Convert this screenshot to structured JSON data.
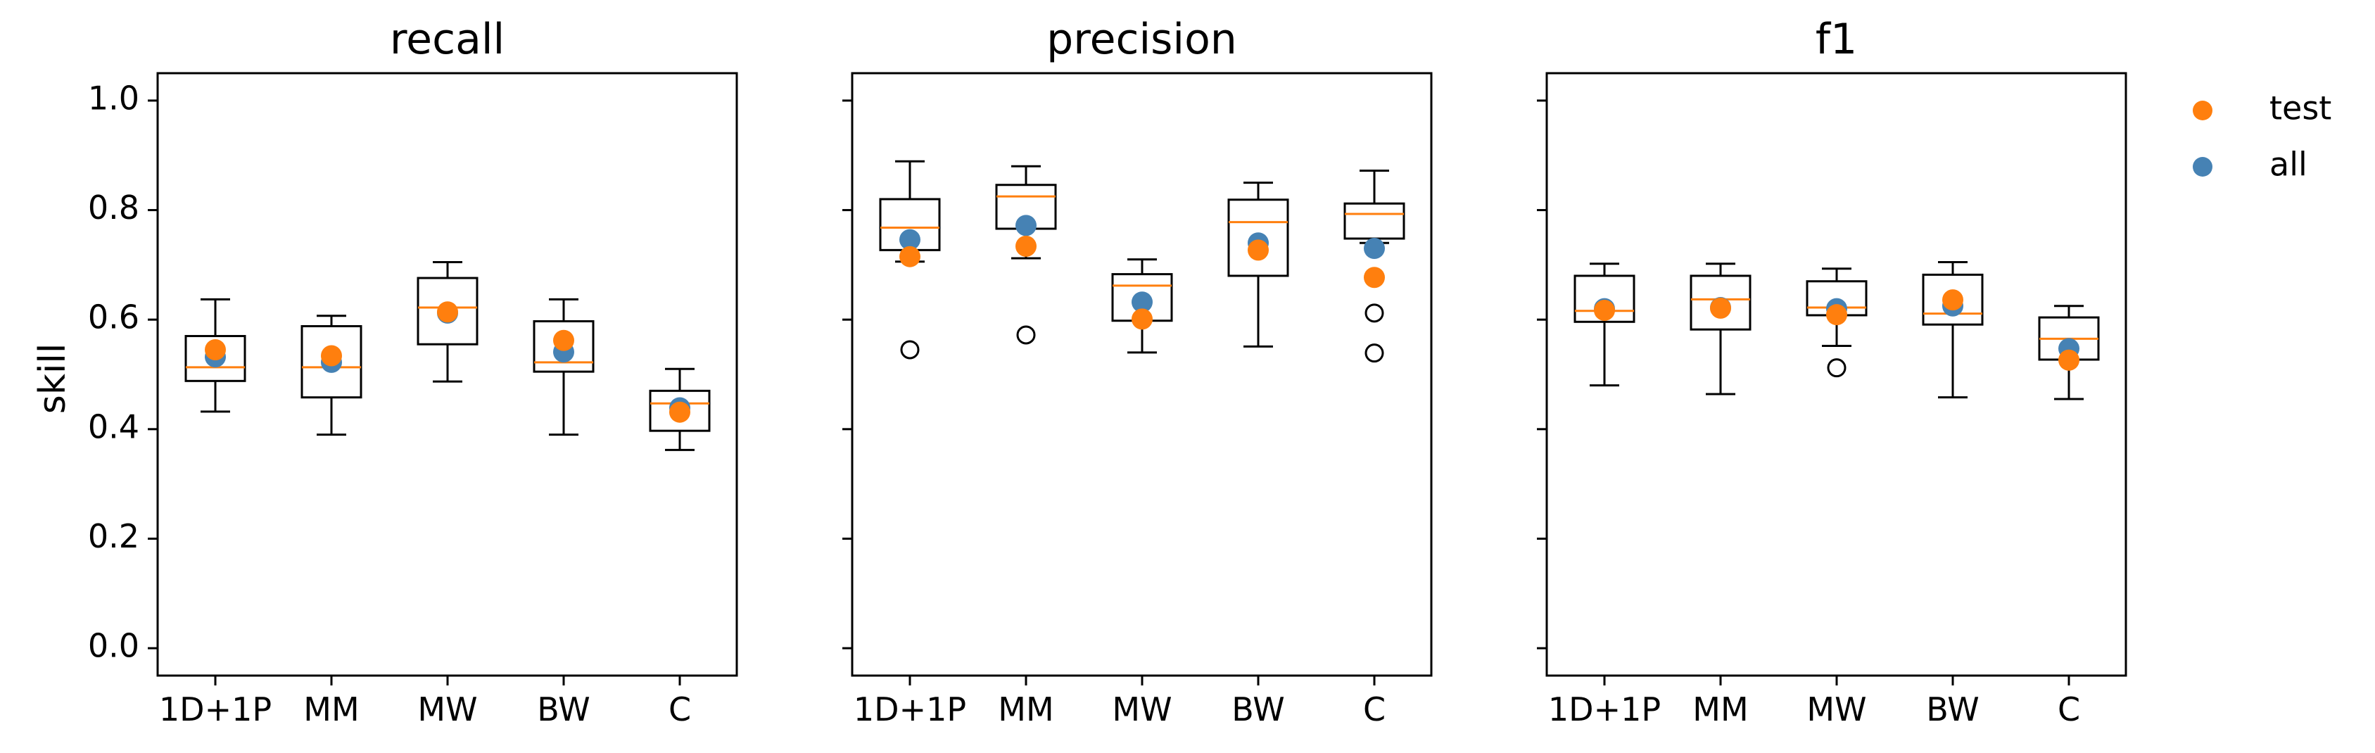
{
  "chart_data": {
    "type": "box",
    "categories": [
      "1D+1P",
      "MM",
      "MW",
      "BW",
      "C"
    ],
    "ylabel": "skill",
    "ylim": [
      -0.05,
      1.05
    ],
    "yticks": [
      "0.0",
      "0.2",
      "0.4",
      "0.6",
      "0.8",
      "1.0"
    ],
    "legend": {
      "position": "top-right-outside",
      "entries": [
        "test",
        "all"
      ]
    },
    "colors": {
      "test": "#ff7f0e",
      "all": "#4682b4",
      "median": "#ff7f0e",
      "box": "#000000"
    },
    "panels": [
      {
        "title": "recall",
        "boxes": [
          {
            "q1": 0.488,
            "median": 0.513,
            "q3": 0.57,
            "whislo": 0.432,
            "whishi": 0.637,
            "fliers": [],
            "test": 0.545,
            "all": 0.532
          },
          {
            "q1": 0.458,
            "median": 0.513,
            "q3": 0.588,
            "whislo": 0.39,
            "whishi": 0.607,
            "fliers": [],
            "test": 0.534,
            "all": 0.522
          },
          {
            "q1": 0.555,
            "median": 0.622,
            "q3": 0.676,
            "whislo": 0.487,
            "whishi": 0.705,
            "fliers": [],
            "test": 0.614,
            "all": 0.612
          },
          {
            "q1": 0.505,
            "median": 0.522,
            "q3": 0.597,
            "whislo": 0.39,
            "whishi": 0.637,
            "fliers": [],
            "test": 0.562,
            "all": 0.541
          },
          {
            "q1": 0.397,
            "median": 0.447,
            "q3": 0.47,
            "whislo": 0.362,
            "whishi": 0.51,
            "fliers": [],
            "test": 0.431,
            "all": 0.439
          }
        ]
      },
      {
        "title": "precision",
        "boxes": [
          {
            "q1": 0.727,
            "median": 0.768,
            "q3": 0.82,
            "whislo": 0.706,
            "whishi": 0.889,
            "fliers": [
              0.545
            ],
            "test": 0.715,
            "all": 0.746
          },
          {
            "q1": 0.766,
            "median": 0.825,
            "q3": 0.846,
            "whislo": 0.712,
            "whishi": 0.88,
            "fliers": [
              0.572
            ],
            "test": 0.734,
            "all": 0.772
          },
          {
            "q1": 0.598,
            "median": 0.662,
            "q3": 0.683,
            "whislo": 0.54,
            "whishi": 0.71,
            "fliers": [],
            "test": 0.601,
            "all": 0.632
          },
          {
            "q1": 0.68,
            "median": 0.778,
            "q3": 0.819,
            "whislo": 0.551,
            "whishi": 0.85,
            "fliers": [],
            "test": 0.727,
            "all": 0.74
          },
          {
            "q1": 0.748,
            "median": 0.793,
            "q3": 0.812,
            "whislo": 0.74,
            "whishi": 0.872,
            "fliers": [
              0.612,
              0.539
            ],
            "test": 0.677,
            "all": 0.73
          }
        ]
      },
      {
        "title": "f1",
        "boxes": [
          {
            "q1": 0.596,
            "median": 0.616,
            "q3": 0.68,
            "whislo": 0.48,
            "whishi": 0.702,
            "fliers": [],
            "test": 0.617,
            "all": 0.62
          },
          {
            "q1": 0.582,
            "median": 0.637,
            "q3": 0.68,
            "whislo": 0.464,
            "whishi": 0.702,
            "fliers": [],
            "test": 0.621,
            "all": 0.622
          },
          {
            "q1": 0.608,
            "median": 0.622,
            "q3": 0.67,
            "whislo": 0.552,
            "whishi": 0.693,
            "fliers": [
              0.512
            ],
            "test": 0.609,
            "all": 0.62
          },
          {
            "q1": 0.591,
            "median": 0.611,
            "q3": 0.682,
            "whislo": 0.458,
            "whishi": 0.705,
            "fliers": [],
            "test": 0.636,
            "all": 0.625
          },
          {
            "q1": 0.527,
            "median": 0.565,
            "q3": 0.604,
            "whislo": 0.455,
            "whishi": 0.625,
            "fliers": [],
            "test": 0.526,
            "all": 0.547
          }
        ]
      }
    ]
  }
}
